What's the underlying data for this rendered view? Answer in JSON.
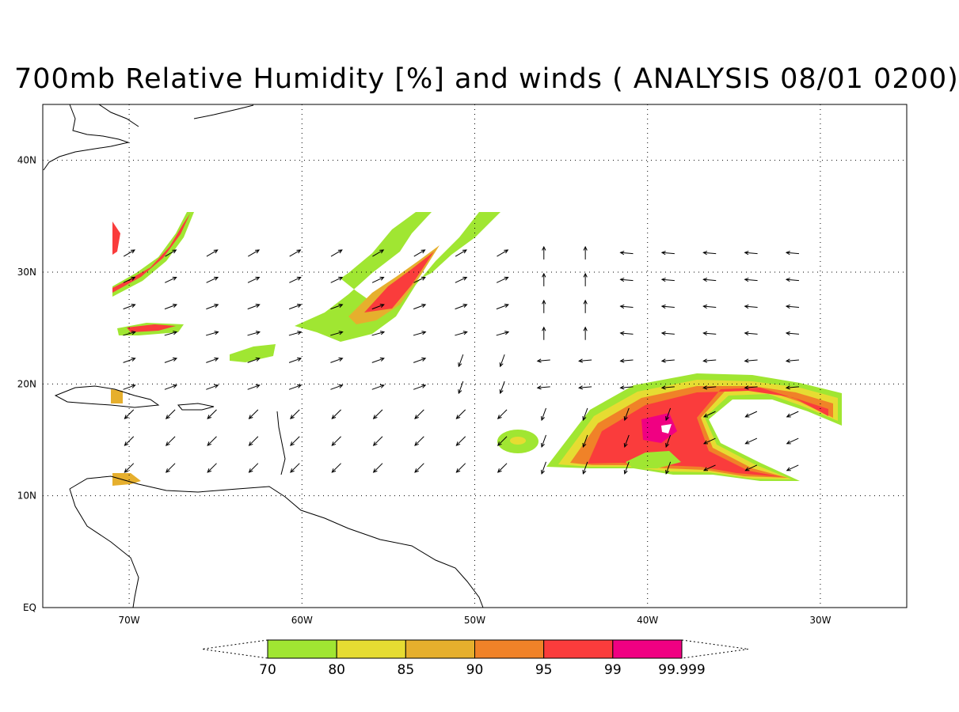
{
  "title": "700mb Relative Humidity [%] and winds ( ANALYSIS 08/01 0200)",
  "map": {
    "lon_range": [
      -75,
      -25
    ],
    "lat_range": [
      0,
      45
    ],
    "x_ticks": [
      {
        "lon": -70,
        "label": "70W"
      },
      {
        "lon": -60,
        "label": "60W"
      },
      {
        "lon": -50,
        "label": "50W"
      },
      {
        "lon": -40,
        "label": "40W"
      },
      {
        "lon": -30,
        "label": "30W"
      }
    ],
    "y_ticks": [
      {
        "lat": 0,
        "label": "EQ"
      },
      {
        "lat": 10,
        "label": "10N"
      },
      {
        "lat": 20,
        "label": "20N"
      },
      {
        "lat": 30,
        "label": "30N"
      },
      {
        "lat": 40,
        "label": "40N"
      }
    ],
    "gridlines": "dotted"
  },
  "colorbar": {
    "levels": [
      "70",
      "80",
      "85",
      "90",
      "95",
      "99",
      "99.999"
    ],
    "colors": [
      "#a0e632",
      "#e6dc32",
      "#e6af2d",
      "#f08228",
      "#fa3c3c",
      "#f00082"
    ]
  }
}
